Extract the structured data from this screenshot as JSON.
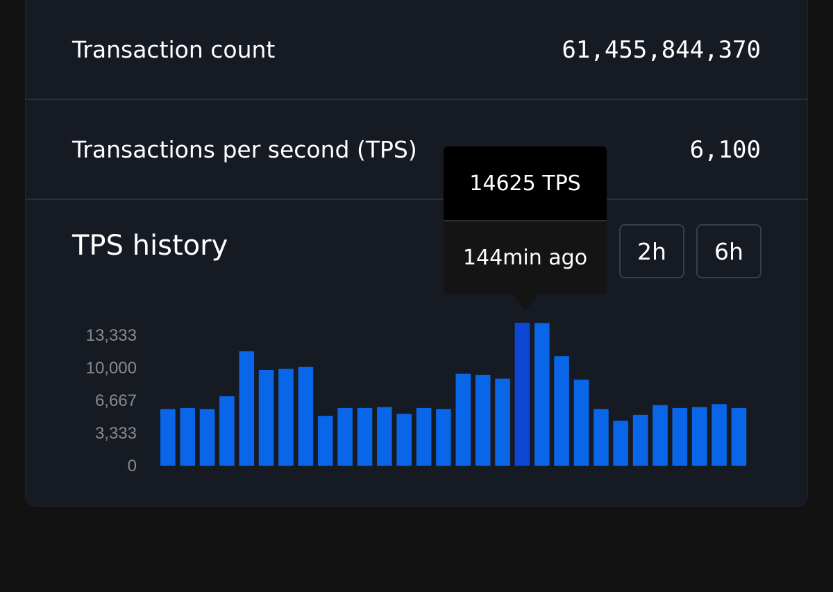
{
  "stats": {
    "transaction_count_label": "Transaction count",
    "transaction_count_value": "61,455,844,370",
    "tps_label": "Transactions per second (TPS)",
    "tps_value": "6,100"
  },
  "history": {
    "title": "TPS history",
    "ranges": [
      "2h",
      "6h"
    ]
  },
  "tooltip": {
    "value": "14625 TPS",
    "time": "144min ago"
  },
  "colors": {
    "bar": "#0a66e8",
    "bar_active": "#0d47d6",
    "tick_text": "#8a8a8a",
    "card_bg": "#161a22",
    "page_bg": "#121212"
  },
  "chart_data": {
    "type": "bar",
    "title": "TPS history",
    "ylim": [
      0,
      14625
    ],
    "yticks": [
      "13,333",
      "10,000",
      "6,667",
      "3,333",
      "0"
    ],
    "ytick_values": [
      13333,
      10000,
      6667,
      3333,
      0
    ],
    "active_index": 18,
    "values": [
      5800,
      5900,
      5800,
      7100,
      11700,
      9800,
      9900,
      10100,
      5100,
      5900,
      5900,
      6000,
      5300,
      5900,
      5800,
      9400,
      9300,
      8900,
      14625,
      14600,
      11200,
      8800,
      5800,
      4600,
      5200,
      6200,
      5900,
      6000,
      6300,
      5900
    ]
  }
}
